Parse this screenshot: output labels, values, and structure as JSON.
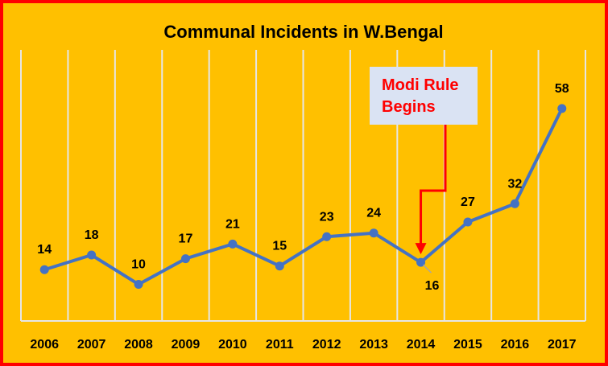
{
  "chart_data": {
    "type": "line",
    "title": "Communal Incidents in W.Bengal",
    "categories": [
      "2006",
      "2007",
      "2008",
      "2009",
      "2010",
      "2011",
      "2012",
      "2013",
      "2014",
      "2015",
      "2016",
      "2017"
    ],
    "series": [
      {
        "values": [
          14,
          18,
          10,
          17,
          21,
          15,
          23,
          24,
          16,
          27,
          32,
          58
        ],
        "color": "#4472C4"
      }
    ],
    "ylim": [
      0,
      74
    ],
    "grid": "vertical",
    "data_labels": true,
    "annotation": {
      "text_lines": [
        "Modi Rule",
        "Begins"
      ],
      "target_category": "2014",
      "text_color": "#FF0000",
      "box_color": "#DAE3F3"
    },
    "colors": {
      "background": "#FFC000",
      "border": "#FF0000",
      "gridline": "#E6E6E6"
    }
  }
}
